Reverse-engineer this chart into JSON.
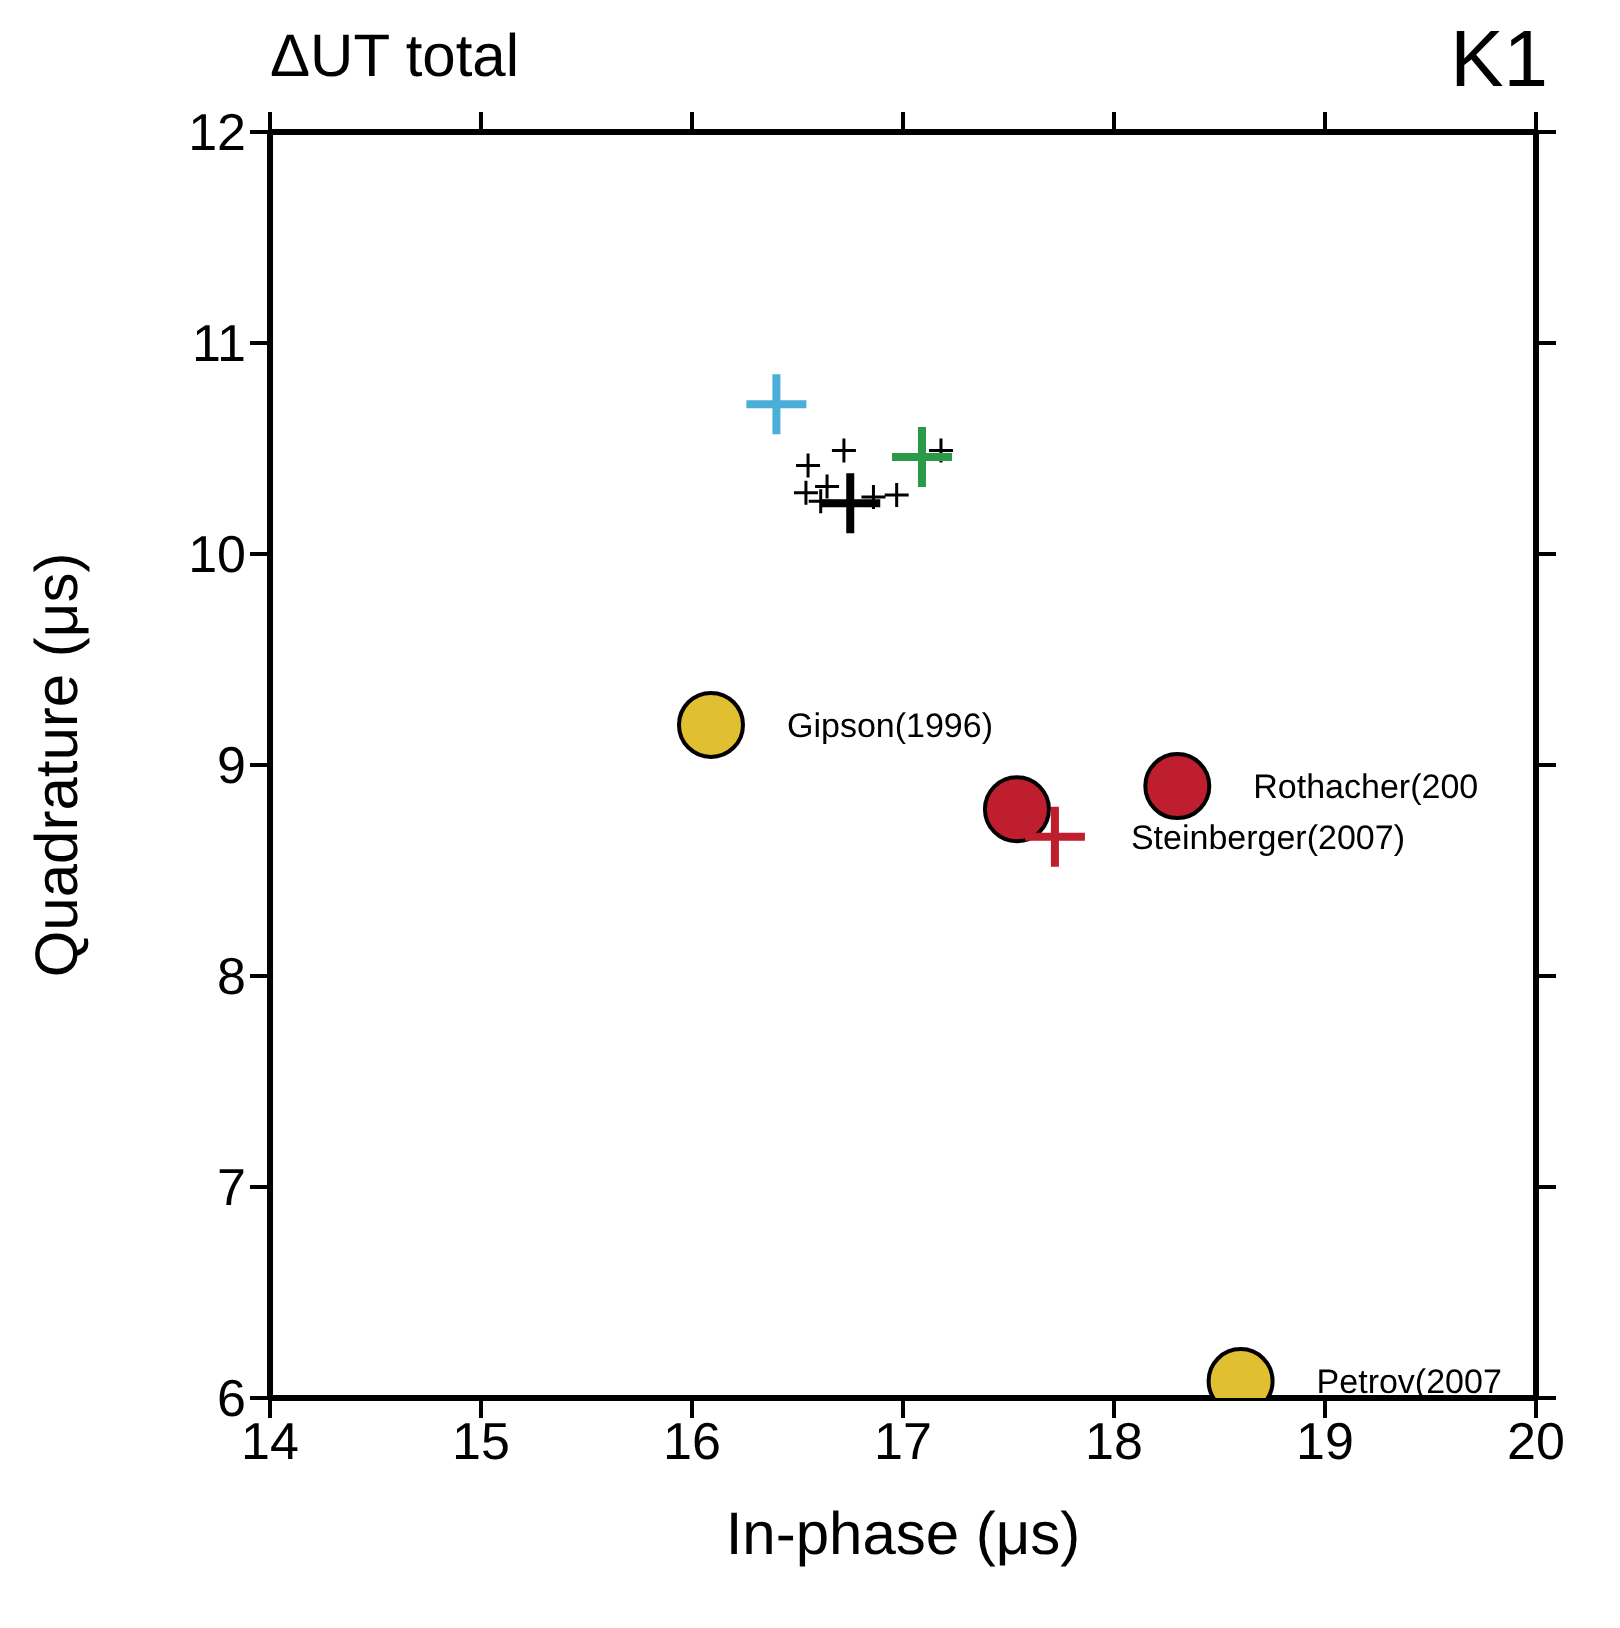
{
  "chart_data": {
    "type": "scatter",
    "title": "ΔUT total",
    "subtitle": "K1",
    "xlabel": "In-phase (μs)",
    "ylabel": "Quadrature (μs)",
    "xlim": [
      14,
      20
    ],
    "xticks": [
      14,
      15,
      16,
      17,
      18,
      19,
      20
    ],
    "ylim": [
      6,
      12
    ],
    "yticks": [
      6,
      7,
      8,
      9,
      10,
      11,
      12
    ],
    "series": [
      {
        "color": "#000000",
        "marker": "cross",
        "x": [
          16.72,
          16.55,
          16.54,
          16.64,
          16.86,
          16.97,
          17.18,
          16.61
        ],
        "values": [
          10.49,
          10.42,
          10.29,
          10.32,
          10.27,
          10.28,
          10.49,
          10.25
        ]
      },
      {
        "color": "#4aaed8",
        "marker": "cross",
        "x": [
          16.4
        ],
        "values": [
          10.71
        ]
      },
      {
        "color": "#2a9a48",
        "marker": "cross",
        "x": [
          17.09
        ],
        "values": [
          10.46
        ]
      },
      {
        "color": "#000000",
        "marker": "cross",
        "x": [
          16.75
        ],
        "values": [
          10.24
        ]
      },
      {
        "color": "#e0c030",
        "marker": "circle",
        "x": [
          16.09,
          18.6
        ],
        "values": [
          9.19,
          6.08
        ]
      },
      {
        "color": "#be1e2d",
        "marker": "circle",
        "x": [
          17.54,
          18.3
        ],
        "values": [
          8.79,
          8.9
        ]
      },
      {
        "color": "#be1e2d",
        "marker": "cross",
        "x": [
          17.72
        ],
        "values": [
          8.66
        ]
      }
    ],
    "annotations": [
      {
        "text": "Gipson(1996)",
        "x": 16.09,
        "y": 9.19
      },
      {
        "text": "Rothacher(200",
        "x": 18.3,
        "y": 8.9
      },
      {
        "text": "Steinberger(2007)",
        "x": 17.72,
        "y": 8.66
      },
      {
        "text": "Petrov(2007",
        "x": 18.6,
        "y": 6.08
      }
    ]
  }
}
